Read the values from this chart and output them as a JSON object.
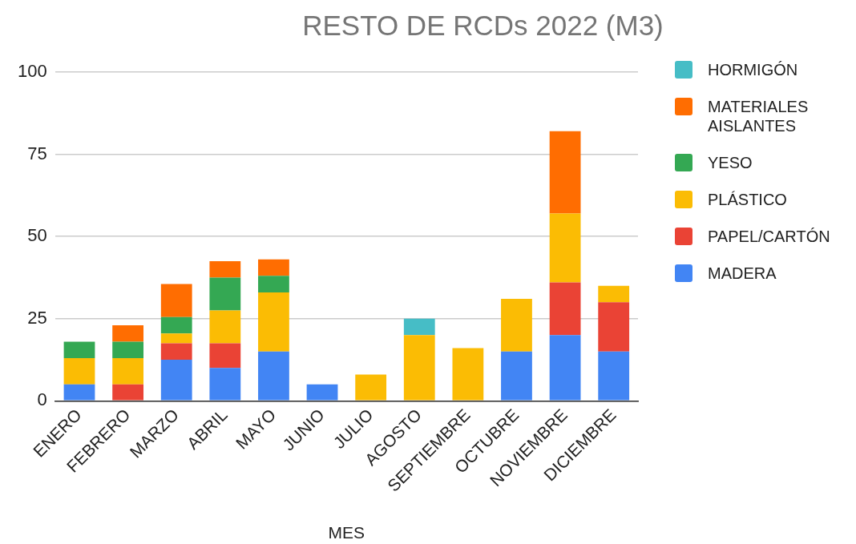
{
  "chart_data": {
    "type": "bar",
    "title": "RESTO DE RCDs 2022 (M3)",
    "xlabel": "MES",
    "categories": [
      "ENERO",
      "FEBRERO",
      "MARZO",
      "ABRIL",
      "MAYO",
      "JUNIO",
      "JULIO",
      "AGOSTO",
      "SEPTIEMBRE",
      "OCTUBRE",
      "NOVIEMBRE",
      "DICIEMBRE"
    ],
    "stacked": true,
    "series": [
      {
        "name": "MADERA",
        "color": "#4285f4",
        "values": [
          5,
          null,
          12.5,
          10,
          15,
          5,
          null,
          null,
          null,
          15,
          20,
          15
        ]
      },
      {
        "name": "PAPEL/CARTÓN",
        "color": "#ea4335",
        "values": [
          null,
          5,
          5,
          7.5,
          null,
          null,
          null,
          null,
          null,
          null,
          16,
          15
        ]
      },
      {
        "name": "PLÁSTICO",
        "color": "#fbbc04",
        "values": [
          8,
          8,
          3,
          10,
          18,
          null,
          8,
          20,
          16,
          16,
          21,
          5
        ]
      },
      {
        "name": "YESO",
        "color": "#34a853",
        "values": [
          5,
          5,
          5,
          10,
          5,
          null,
          null,
          null,
          null,
          null,
          null,
          null
        ]
      },
      {
        "name": "MATERIALES AISLANTES",
        "color": "#ff6d01",
        "values": [
          null,
          5,
          10,
          5,
          5,
          null,
          null,
          null,
          null,
          null,
          25,
          null
        ]
      },
      {
        "name": "HORMIGÓN",
        "color": "#46bdc6",
        "values": [
          null,
          null,
          null,
          null,
          null,
          null,
          null,
          5,
          null,
          null,
          null,
          null
        ]
      }
    ],
    "ylim": [
      0,
      100
    ],
    "yticks": [
      0,
      25,
      50,
      75,
      100
    ],
    "grid": "y",
    "legend": "right"
  }
}
